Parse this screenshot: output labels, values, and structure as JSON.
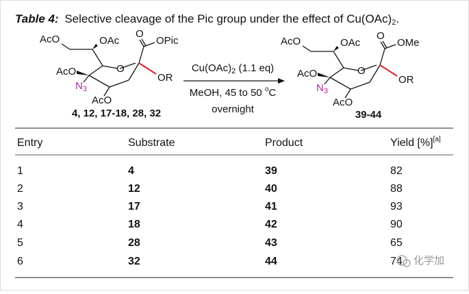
{
  "caption": {
    "label": "Table 4:",
    "text": "Selective cleavage of the Pic group under the effect of Cu(OAc)",
    "sub": "2",
    "end": "."
  },
  "scheme": {
    "substrate": {
      "aco_top": "AcO",
      "oac_top": "OAc",
      "carbonyl_o": "O",
      "ester": "OPic",
      "aco_mid": "AcO",
      "azide": "N",
      "azide_sub": "3",
      "aco_low": "AcO",
      "ring_o": "O",
      "or": "OR",
      "label": "4, 12, 17-18, 28, 32"
    },
    "reagent": {
      "name": "Cu(OAc)",
      "name_sub": "2",
      "amount": " (1.1 eq)",
      "conditions": "MeOH, 45 to 50 ",
      "degree": "o",
      "unit": "C",
      "time": "overnight"
    },
    "product": {
      "aco_top": "AcO",
      "oac_top": "OAc",
      "carbonyl_o": "O",
      "ester": "OMe",
      "aco_mid": "AcO",
      "azide": "N",
      "azide_sub": "3",
      "aco_low": "AcO",
      "ring_o": "O",
      "or": "OR",
      "label": "39-44"
    }
  },
  "table": {
    "headers": [
      "Entry",
      "Substrate",
      "Product",
      "Yield [%]"
    ],
    "header_note": "[a]",
    "rows": [
      [
        1,
        4,
        39,
        82
      ],
      [
        2,
        12,
        40,
        88
      ],
      [
        3,
        17,
        41,
        93
      ],
      [
        4,
        18,
        42,
        90
      ],
      [
        5,
        28,
        43,
        65
      ],
      [
        6,
        32,
        44,
        74
      ]
    ]
  },
  "watermark": "化学加"
}
